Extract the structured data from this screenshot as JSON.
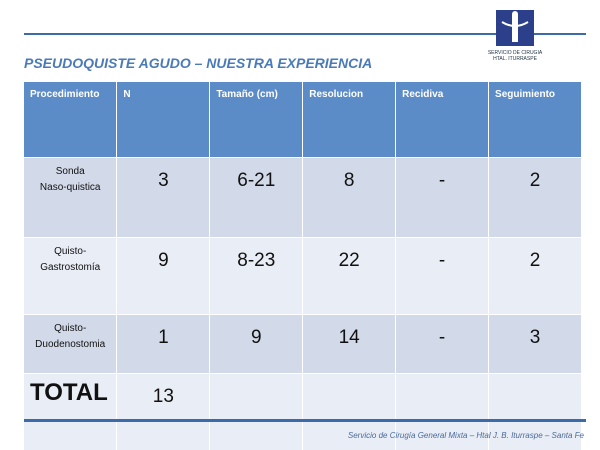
{
  "header": {
    "title": "PSEUDOQUISTE AGUDO – NUESTRA EXPERIENCIA",
    "logo_lines": [
      "SERVICIO DE CIRUGIA",
      "HTAL. ITURRASPE"
    ]
  },
  "table": {
    "columns": [
      "Procedimiento",
      "N",
      "Tamaño (cm)",
      "Resolucion",
      "Recidiva",
      "Seguimiento"
    ],
    "rows": [
      {
        "procedure": [
          "Sonda",
          "Naso-quistica"
        ],
        "cells": [
          3,
          "6-21",
          8,
          "-",
          2
        ]
      },
      {
        "procedure": [
          "Quisto-",
          "Gastrostomía"
        ],
        "cells": [
          9,
          "8-23",
          22,
          "-",
          2
        ]
      },
      {
        "procedure": [
          "Quisto-",
          "Duodenostomia"
        ],
        "cells": [
          1,
          9,
          14,
          "-",
          3
        ]
      },
      {
        "procedure": [
          "TOTAL"
        ],
        "cells": [
          13
        ]
      }
    ]
  },
  "footer": {
    "text": "Servicio de Cirugía General Mixta – Htal J. B. Iturraspe – Santa Fe"
  }
}
